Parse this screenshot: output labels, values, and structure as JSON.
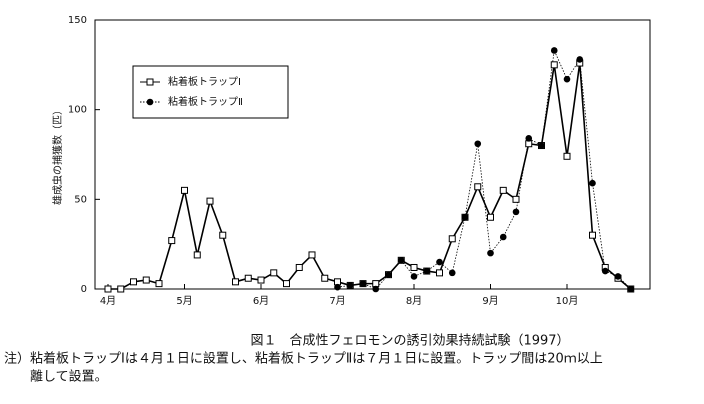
{
  "chart_data": {
    "type": "line",
    "ylabel": "雄成虫の捕獲数（匹）",
    "caption": "図１　合成性フェロモンの誘引効果持続試験（1997）",
    "note": [
      "注）粘着板トラップⅠは４月１日に設置し、粘着板トラップⅡは７月１日に設置。トラップ間は20ｍ以上",
      "離して設置。"
    ],
    "categories": [
      "4月",
      null,
      null,
      null,
      null,
      null,
      "5月",
      null,
      null,
      null,
      null,
      null,
      "6月",
      null,
      null,
      null,
      null,
      null,
      "7月",
      null,
      null,
      null,
      null,
      null,
      "8月",
      null,
      null,
      null,
      null,
      null,
      "9月",
      null,
      null,
      null,
      null,
      null,
      "10月",
      null,
      null,
      null,
      null,
      null
    ],
    "series": [
      {
        "name": "粘着板トラップⅠ",
        "color": "#000000",
        "style": "solid",
        "marker": "square",
        "values": [
          0,
          0,
          4,
          5,
          3,
          27,
          55,
          19,
          49,
          30,
          4,
          6,
          5,
          9,
          3,
          12,
          19,
          6,
          4,
          2,
          3,
          3,
          8,
          16,
          12,
          10,
          9,
          28,
          40,
          57,
          40,
          55,
          50,
          81,
          80,
          125,
          74,
          126,
          30,
          12,
          6,
          0
        ]
      },
      {
        "name": "粘着板トラップⅡ",
        "color": "#000000",
        "style": "dotted",
        "marker": "circle",
        "values": [
          null,
          null,
          null,
          null,
          null,
          null,
          null,
          null,
          null,
          null,
          null,
          null,
          null,
          null,
          null,
          null,
          null,
          null,
          1,
          2,
          3,
          0,
          8,
          16,
          7,
          10,
          15,
          9,
          40,
          81,
          20,
          29,
          43,
          84,
          80,
          133,
          117,
          128,
          59,
          10,
          7,
          0
        ]
      }
    ],
    "ylim": [
      0,
      150
    ],
    "yticks": [
      0,
      50,
      100,
      150
    ],
    "grid": false,
    "legend": "upper-left"
  }
}
